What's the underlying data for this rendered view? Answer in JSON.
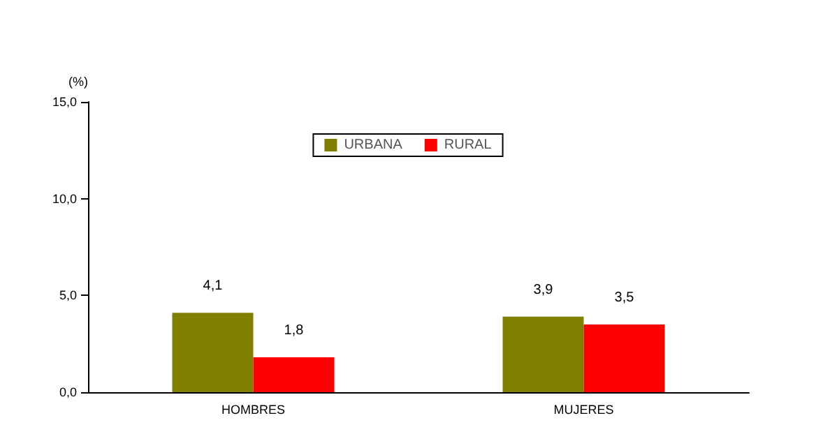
{
  "chart_data": {
    "type": "bar",
    "ylabel": "(%)",
    "categories": [
      "HOMBRES",
      "MUJERES"
    ],
    "series": [
      {
        "name": "URBANA",
        "color": "#808000",
        "values": [
          4.1,
          3.9
        ],
        "value_labels": [
          "4,1",
          "3,9"
        ]
      },
      {
        "name": "RURAL",
        "color": "#ff0000",
        "values": [
          1.8,
          3.5
        ],
        "value_labels": [
          "1,8",
          "3,5"
        ]
      }
    ],
    "ylim": [
      0,
      15
    ],
    "yticks": [
      {
        "value": 0,
        "label": "0,0"
      },
      {
        "value": 5,
        "label": "5,0"
      },
      {
        "value": 10,
        "label": "10,0"
      },
      {
        "value": 15,
        "label": "15,0"
      }
    ],
    "grid": false,
    "legend": "top"
  }
}
